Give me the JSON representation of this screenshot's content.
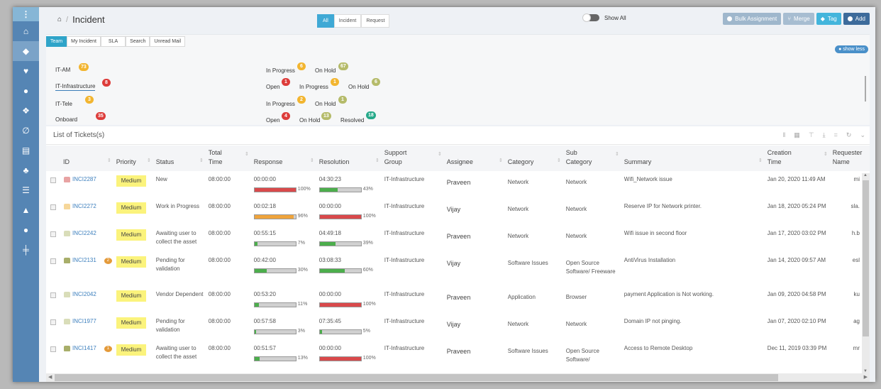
{
  "sidebar": {
    "items": [
      {
        "name": "home",
        "icon": "home-icon"
      },
      {
        "name": "tickets",
        "icon": "ticket-icon",
        "active": true
      },
      {
        "name": "health",
        "icon": "heart-pulse-icon"
      },
      {
        "name": "alerts",
        "icon": "exclamation-icon"
      },
      {
        "name": "assets",
        "icon": "cubes-icon"
      },
      {
        "name": "changes",
        "icon": "planet-icon"
      },
      {
        "name": "documents",
        "icon": "document-icon"
      },
      {
        "name": "organization",
        "icon": "sitemap-icon"
      },
      {
        "name": "inventory",
        "icon": "server-icon"
      },
      {
        "name": "reports",
        "icon": "area-chart-icon"
      },
      {
        "name": "users",
        "icon": "user-icon"
      },
      {
        "name": "settings",
        "icon": "signpost-icon"
      }
    ]
  },
  "header": {
    "breadcrumb_sep": "/",
    "title": "Incident",
    "type_tabs": [
      {
        "label": "All",
        "active": true
      },
      {
        "label": "Incident",
        "active": false
      },
      {
        "label": "Request",
        "active": false
      }
    ],
    "toggle_label": "Show All",
    "buttons": {
      "bulk": "Bulk Assignment",
      "merge": "Merge",
      "tag": "Tag",
      "add": "Add"
    }
  },
  "filters": {
    "tabs": [
      {
        "label": "Team",
        "active": true
      },
      {
        "label": "My Incident",
        "active": false
      },
      {
        "label": "SLA",
        "active": false
      },
      {
        "label": "Search",
        "active": false
      },
      {
        "label": "Unread Mail",
        "active": false
      }
    ],
    "show_less": "show less",
    "teams": [
      {
        "name": "IT-AM",
        "count": "73",
        "color": "yellow",
        "statuses": [
          {
            "label": "In Progress",
            "count": "6",
            "color": "yellow"
          },
          {
            "label": "On Hold",
            "count": "67",
            "color": "olive"
          }
        ]
      },
      {
        "name": "IT-Infrastructure",
        "count": "8",
        "color": "red",
        "selected": true,
        "statuses": [
          {
            "label": "Open",
            "count": "1",
            "color": "red"
          },
          {
            "label": "In Progress",
            "count": "1",
            "color": "yellow"
          },
          {
            "label": "On Hold",
            "count": "6",
            "color": "olive"
          }
        ]
      },
      {
        "name": "IT-Tele",
        "count": "3",
        "color": "yellow",
        "statuses": [
          {
            "label": "In Progress",
            "count": "2",
            "color": "yellow"
          },
          {
            "label": "On Hold",
            "count": "1",
            "color": "olive"
          }
        ]
      },
      {
        "name": "Onboard",
        "count": "35",
        "color": "red",
        "statuses": [
          {
            "label": "Open",
            "count": "4",
            "color": "red"
          },
          {
            "label": "On Hold",
            "count": "13",
            "color": "olive"
          },
          {
            "label": "Resolved",
            "count": "18",
            "color": "green"
          }
        ]
      }
    ]
  },
  "tickets": {
    "title": "List of Tickets(s)",
    "columns": [
      "ID",
      "Priority",
      "Status",
      "Total Time",
      "Response",
      "Resolution",
      "Support Group",
      "Assignee",
      "Category",
      "Sub Category",
      "Summary",
      "Creation Time",
      "Requester Name"
    ],
    "rows": [
      {
        "id": "INCI2287",
        "icon_color": "#e8a3a3",
        "chat": "",
        "priority": "Medium",
        "status": "New",
        "total": "08:00:00",
        "resp_time": "00:00:00",
        "resp_pct": "100%",
        "resp_color": "#d9494b",
        "resp_fill": 100,
        "res_time": "04:30:23",
        "res_pct": "43%",
        "res_color": "#4cae4c",
        "res_fill": 43,
        "group": "IT-Infrastructure",
        "assignee": "Praveen",
        "category": "Network",
        "subcategory": "Network",
        "summary": "Wifi_Network issue",
        "created": "Jan 20, 2020 11:49 AM",
        "requester": "mi"
      },
      {
        "id": "INCI2272",
        "icon_color": "#f6d79a",
        "chat": "",
        "priority": "Medium",
        "status": "Work in Progress",
        "total": "08:00:00",
        "resp_time": "00:02:18",
        "resp_pct": "96%",
        "resp_color": "#efa43b",
        "resp_fill": 96,
        "res_time": "00:00:00",
        "res_pct": "100%",
        "res_color": "#d9494b",
        "res_fill": 100,
        "group": "IT-Infrastructure",
        "assignee": "Vijay",
        "category": "Network",
        "subcategory": "Network",
        "summary": "Reserve IP for Network printer.",
        "created": "Jan 18, 2020 05:24 PM",
        "requester": "sla."
      },
      {
        "id": "INCI2242",
        "icon_color": "#d9ddb9",
        "chat": "",
        "priority": "Medium",
        "status": "Awaiting user to collect the asset",
        "total": "08:00:00",
        "resp_time": "00:55:15",
        "resp_pct": "7%",
        "resp_color": "#4cae4c",
        "resp_fill": 7,
        "res_time": "04:49:18",
        "res_pct": "39%",
        "res_color": "#4cae4c",
        "res_fill": 39,
        "group": "IT-Infrastructure",
        "assignee": "Praveen",
        "category": "Network",
        "subcategory": "Network",
        "summary": "Wifi issue in second floor",
        "created": "Jan 17, 2020 03:02 PM",
        "requester": "h.b"
      },
      {
        "id": "INCI2131",
        "icon_color": "#a8ae6a",
        "chat": "2",
        "priority": "Medium",
        "status": "Pending for validation",
        "total": "08:00:00",
        "resp_time": "00:42:00",
        "resp_pct": "30%",
        "resp_color": "#4cae4c",
        "resp_fill": 30,
        "res_time": "03:08:33",
        "res_pct": "60%",
        "res_color": "#4cae4c",
        "res_fill": 60,
        "group": "IT-Infrastructure",
        "assignee": "Vijay",
        "category": "Software Issues",
        "subcategory": "Open Source Software/ Freeware",
        "summary": "AntiVirus Installation",
        "created": "Jan 14, 2020 09:57 AM",
        "requester": "esl"
      },
      {
        "id": "INCI2042",
        "icon_color": "#d9ddb9",
        "chat": "",
        "priority": "Medium",
        "status": "Vendor Dependent",
        "total": "08:00:00",
        "resp_time": "00:53:20",
        "resp_pct": "11%",
        "resp_color": "#4cae4c",
        "resp_fill": 11,
        "res_time": "00:00:00",
        "res_pct": "100%",
        "res_color": "#d9494b",
        "res_fill": 100,
        "group": "IT-Infrastructure",
        "assignee": "Praveen",
        "category": "Application",
        "subcategory": "Browser",
        "summary": "payment Application is Not working.",
        "created": "Jan 09, 2020 04:58 PM",
        "requester": "ku"
      },
      {
        "id": "INCI1977",
        "icon_color": "#d9ddb9",
        "chat": "",
        "priority": "Medium",
        "status": "Pending for validation",
        "total": "08:00:00",
        "resp_time": "00:57:58",
        "resp_pct": "3%",
        "resp_color": "#4cae4c",
        "resp_fill": 3,
        "res_time": "07:35:45",
        "res_pct": "5%",
        "res_color": "#4cae4c",
        "res_fill": 5,
        "group": "IT-Infrastructure",
        "assignee": "Vijay",
        "category": "Network",
        "subcategory": "Network",
        "summary": "Domain IP not pinging.",
        "created": "Jan 07, 2020 02:10 PM",
        "requester": "ag"
      },
      {
        "id": "INCI1417",
        "icon_color": "#a8ae6a",
        "chat": "1",
        "priority": "Medium",
        "status": "Awaiting user to collect the asset",
        "total": "08:00:00",
        "resp_time": "00:51:57",
        "resp_pct": "13%",
        "resp_color": "#4cae4c",
        "resp_fill": 13,
        "res_time": "00:00:00",
        "res_pct": "100%",
        "res_color": "#d9494b",
        "res_fill": 100,
        "group": "IT-Infrastructure",
        "assignee": "Praveen",
        "category": "Software Issues",
        "subcategory": "Open Source Software/",
        "summary": "Access to Remote Desktop",
        "created": "Dec 11, 2019 03:39 PM",
        "requester": "mr"
      }
    ]
  }
}
